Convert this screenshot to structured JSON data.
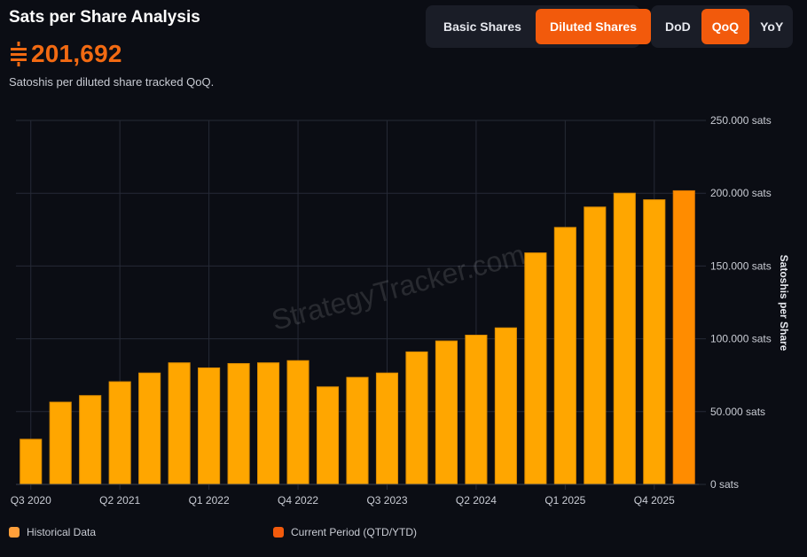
{
  "header": {
    "title": "Sats per Share Analysis",
    "value": "201,692",
    "subtitle": "Satoshis per diluted share tracked QoQ."
  },
  "share_toggle": {
    "options": [
      "Basic Shares",
      "Diluted Shares"
    ],
    "active": "Diluted Shares"
  },
  "period_toggle": {
    "options": [
      "DoD",
      "QoQ",
      "YoY"
    ],
    "active": "QoQ"
  },
  "watermark": "StrategyTracker.com",
  "legend": {
    "historical": "Historical Data",
    "current": "Current Period (QTD/YTD)"
  },
  "colors": {
    "historical": "#ffa600",
    "current": "#ff8c00",
    "accent": "#f26a12",
    "background": "#0b0d14"
  },
  "chart_data": {
    "type": "bar",
    "ylabel": "Satoshis per Share",
    "ylim": [
      0,
      250000
    ],
    "yticks": [
      0,
      50000,
      100000,
      150000,
      200000,
      250000
    ],
    "ytick_labels": [
      "0 sats",
      "50.000 sats",
      "100.000 sats",
      "150.000 sats",
      "200.000 sats",
      "250.000 sats"
    ],
    "categories": [
      "Q3 2020",
      "Q4 2020",
      "Q1 2021",
      "Q2 2021",
      "Q3 2021",
      "Q4 2021",
      "Q1 2022",
      "Q2 2022",
      "Q3 2022",
      "Q4 2022",
      "Q1 2023",
      "Q2 2023",
      "Q3 2023",
      "Q4 2023",
      "Q1 2024",
      "Q2 2024",
      "Q3 2024",
      "Q4 2024",
      "Q1 2025",
      "Q2 2025",
      "Q3 2025",
      "Q4 2025",
      "Q1 2026"
    ],
    "xtick_labels": [
      "Q3 2020",
      "Q2 2021",
      "Q1 2022",
      "Q4 2022",
      "Q3 2023",
      "Q2 2024",
      "Q1 2025",
      "Q4 2025"
    ],
    "values": [
      31000,
      56500,
      61000,
      70500,
      76500,
      83500,
      80000,
      83000,
      83500,
      85000,
      67000,
      73500,
      76500,
      91000,
      98500,
      102500,
      107500,
      159000,
      176500,
      190500,
      200000,
      195500,
      201692
    ],
    "current_index": 22,
    "grid": true,
    "legend_position": "bottom-left"
  }
}
